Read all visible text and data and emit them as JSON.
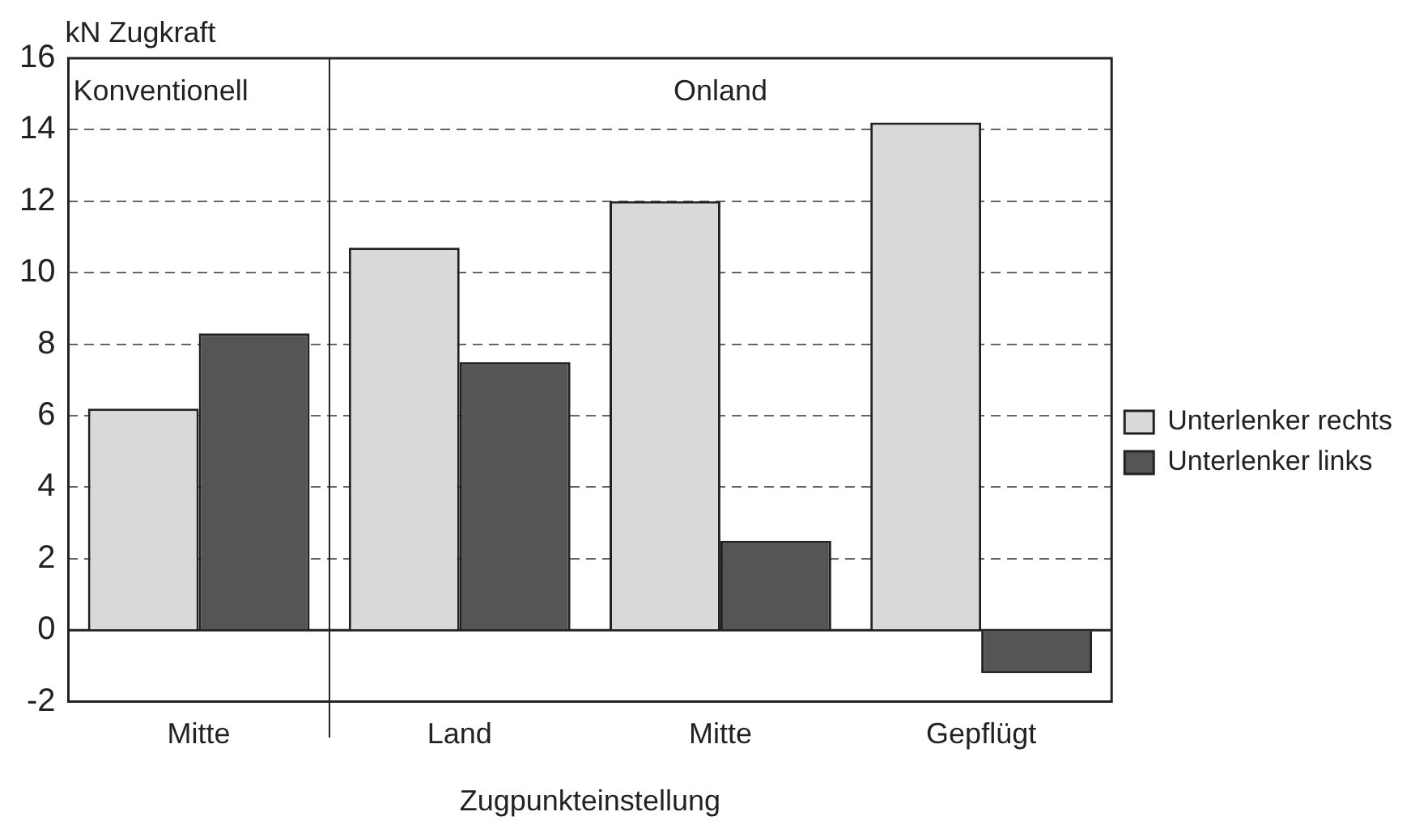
{
  "chart_data": {
    "type": "bar",
    "xlabel": "Zugpunkteinstellung",
    "ylabel": "kN Zugkraft",
    "categories": [
      "Mitte",
      "Land",
      "Mitte",
      "Gepflügt"
    ],
    "series": [
      {
        "name": "Unterlenker rechts",
        "color": "#d9d9d9",
        "values": [
          6.2,
          10.7,
          12.0,
          14.2
        ]
      },
      {
        "name": "Unterlenker links",
        "color": "#555555",
        "values": [
          8.3,
          7.5,
          2.5,
          -1.2
        ]
      }
    ],
    "ylim": [
      -2,
      16
    ],
    "yticks": [
      -2,
      0,
      2,
      4,
      6,
      8,
      10,
      12,
      14,
      16
    ],
    "grid": "y",
    "legend": "right",
    "annotations": [
      "Konventionell",
      "Onland"
    ]
  }
}
